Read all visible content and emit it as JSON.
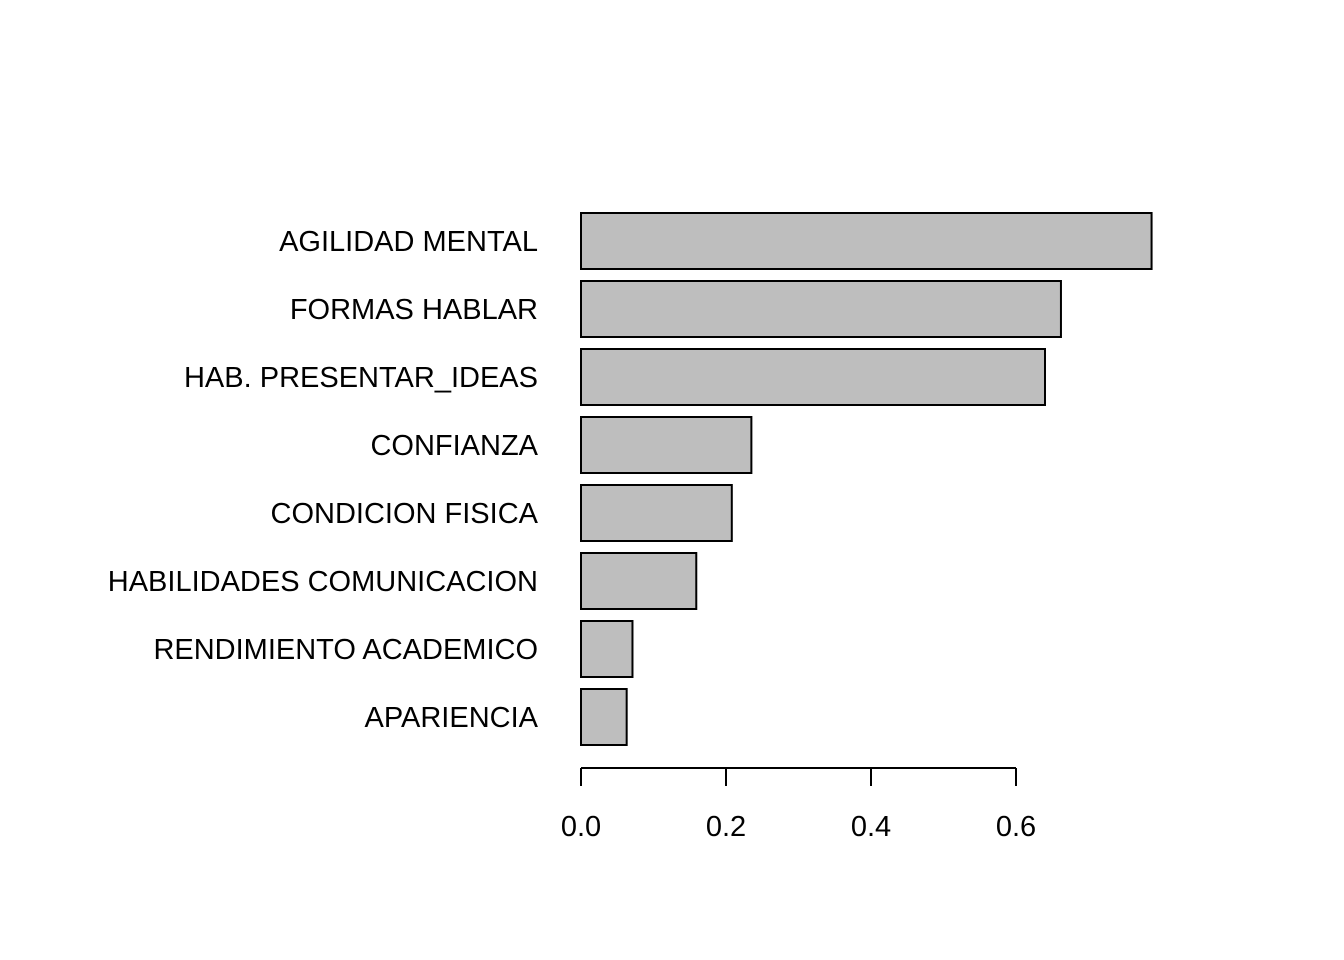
{
  "chart_data": {
    "type": "bar",
    "orientation": "horizontal",
    "title": "",
    "xlabel": "",
    "ylabel": "",
    "categories": [
      "AGILIDAD MENTAL",
      "FORMAS HABLAR",
      "HAB. PRESENTAR_IDEAS",
      "CONFIANZA",
      "CONDICION FISICA",
      "HABILIDADES COMUNICACION",
      "RENDIMIENTO ACADEMICO",
      "APARIENCIA"
    ],
    "values": [
      0.787,
      0.662,
      0.64,
      0.235,
      0.208,
      0.159,
      0.071,
      0.063
    ],
    "xlim": [
      0,
      0.787
    ],
    "xticks": [
      "0.0",
      "0.2",
      "0.4",
      "0.6"
    ],
    "grid": false,
    "legend": "none",
    "colors": {
      "bar_fill": "#bebebe",
      "bar_stroke": "#000000",
      "background": "#ffffff"
    }
  }
}
